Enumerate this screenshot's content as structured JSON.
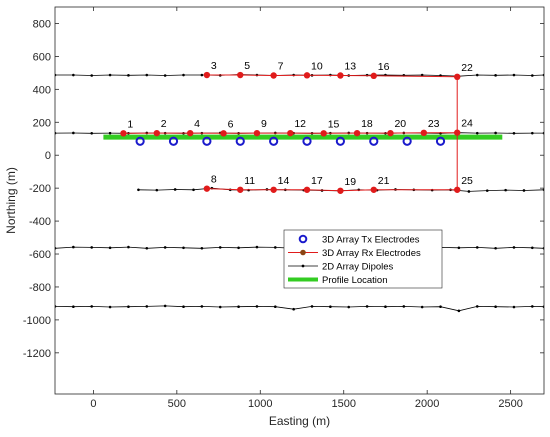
{
  "chart_data": {
    "type": "scatter",
    "xlabel": "Easting (m)",
    "ylabel": "Northing (m)",
    "xlim": [
      -230,
      2700
    ],
    "ylim": [
      -1450,
      900
    ],
    "xticks": [
      0,
      500,
      1000,
      1500,
      2000,
      2500
    ],
    "yticks": [
      -1200,
      -1000,
      -800,
      -600,
      -400,
      -200,
      0,
      200,
      400,
      600,
      800
    ],
    "grid": false,
    "legend": {
      "position": "center",
      "entries": [
        {
          "label": "3D Array Tx Electrodes",
          "series": "tx",
          "marker": "ring",
          "color": "#1a1acc"
        },
        {
          "label": "3D Array Rx Electrodes",
          "series": "rx",
          "marker": "dot-line",
          "color": "#e01b1b",
          "marker_color": "#8b4513"
        },
        {
          "label": "2D Array Dipoles",
          "series": "dipole",
          "marker": "small-dot-line",
          "color": "#000000"
        },
        {
          "label": "Profile Location",
          "series": "profile",
          "marker": "thick-line",
          "color": "#33cc22"
        }
      ]
    },
    "profile": {
      "name": "Profile Location",
      "color": "#33cc22",
      "x": [
        60,
        2450
      ],
      "y": [
        110,
        110
      ]
    },
    "tx_electrodes": {
      "name": "3D Array Tx Electrodes",
      "color": "#1a1acc",
      "x": [
        280,
        480,
        680,
        880,
        1080,
        1280,
        1480,
        1680,
        1880,
        2080
      ],
      "y": [
        85,
        85,
        85,
        85,
        85,
        85,
        85,
        85,
        85,
        85
      ]
    },
    "rx_lines": {
      "name": "3D Array Rx Electrodes",
      "color": "#e01b1b",
      "lines": [
        {
          "x": [
            680,
            880,
            1080,
            1280,
            1480,
            1680,
            2180
          ],
          "y": [
            487,
            487,
            484,
            485,
            484,
            482,
            476
          ]
        },
        {
          "x": [
            180,
            380,
            580,
            780,
            980,
            1180,
            1380,
            1580,
            1780,
            1980,
            2180
          ],
          "y": [
            133,
            134,
            134,
            133,
            134,
            134,
            133,
            134,
            134,
            136,
            137
          ]
        },
        {
          "x": [
            680,
            880,
            1080,
            1280,
            1480,
            1680,
            2180
          ],
          "y": [
            -203,
            -210,
            -210,
            -210,
            -216,
            -210,
            -210
          ]
        },
        {
          "x": [
            2180,
            2180
          ],
          "y": [
            476,
            -210
          ]
        }
      ]
    },
    "rx_labels": [
      {
        "text": "1",
        "x": 180,
        "y": 133
      },
      {
        "text": "2",
        "x": 380,
        "y": 134
      },
      {
        "text": "3",
        "x": 680,
        "y": 487
      },
      {
        "text": "4",
        "x": 580,
        "y": 134
      },
      {
        "text": "5",
        "x": 880,
        "y": 487
      },
      {
        "text": "6",
        "x": 780,
        "y": 133
      },
      {
        "text": "7",
        "x": 1080,
        "y": 484
      },
      {
        "text": "8",
        "x": 680,
        "y": -203
      },
      {
        "text": "9",
        "x": 980,
        "y": 134
      },
      {
        "text": "10",
        "x": 1280,
        "y": 485
      },
      {
        "text": "11",
        "x": 880,
        "y": -210
      },
      {
        "text": "12",
        "x": 1180,
        "y": 134
      },
      {
        "text": "13",
        "x": 1480,
        "y": 484
      },
      {
        "text": "14",
        "x": 1080,
        "y": -210
      },
      {
        "text": "15",
        "x": 1380,
        "y": 133
      },
      {
        "text": "16",
        "x": 1680,
        "y": 482
      },
      {
        "text": "17",
        "x": 1280,
        "y": -210
      },
      {
        "text": "18",
        "x": 1580,
        "y": 134
      },
      {
        "text": "19",
        "x": 1480,
        "y": -216
      },
      {
        "text": "20",
        "x": 1780,
        "y": 134
      },
      {
        "text": "21",
        "x": 1680,
        "y": -210
      },
      {
        "text": "22",
        "x": 2180,
        "y": 476
      },
      {
        "text": "23",
        "x": 1980,
        "y": 136
      },
      {
        "text": "24",
        "x": 2180,
        "y": 137
      },
      {
        "text": "25",
        "x": 2180,
        "y": -210
      }
    ],
    "dipole_lines": {
      "name": "2D Array Dipoles",
      "color": "#000000",
      "lines": [
        {
          "x": [
            -230,
            -120,
            -10,
            100,
            210,
            320,
            430,
            540,
            650,
            760,
            870,
            980,
            1090,
            1200,
            1310,
            1420,
            1530,
            1640,
            1750,
            1860,
            1970,
            2080,
            2190,
            2300,
            2410,
            2520,
            2630,
            2700
          ],
          "y": [
            487,
            487,
            484,
            487,
            485,
            487,
            484,
            487,
            487,
            485,
            490,
            487,
            484,
            487,
            485,
            487,
            484,
            486,
            487,
            485,
            487,
            484,
            480,
            487,
            485,
            487,
            484,
            487
          ]
        },
        {
          "x": [
            -230,
            -120,
            -10,
            100,
            210,
            320,
            430,
            540,
            650,
            760,
            870,
            980,
            1090,
            1200,
            1310,
            1420,
            1530,
            1640,
            1750,
            1860,
            1970,
            2080,
            2190,
            2300,
            2410,
            2520,
            2630,
            2700
          ],
          "y": [
            134,
            135,
            133,
            134,
            133,
            135,
            134,
            133,
            134,
            135,
            133,
            134,
            135,
            134,
            133,
            134,
            135,
            134,
            133,
            135,
            134,
            133,
            137,
            134,
            135,
            133,
            134,
            134
          ]
        },
        {
          "x": [
            270,
            380,
            490,
            600,
            710,
            820,
            930,
            1040,
            1150,
            1260,
            1370,
            1480,
            1590,
            1700,
            1810,
            1920,
            2030,
            2140,
            2250,
            2360,
            2470,
            2580,
            2700
          ],
          "y": [
            -210,
            -212,
            -208,
            -210,
            -200,
            -210,
            -212,
            -208,
            -210,
            -212,
            -214,
            -216,
            -210,
            -212,
            -208,
            -210,
            -212,
            -210,
            -220,
            -215,
            -212,
            -214,
            -210
          ]
        },
        {
          "x": [
            -230,
            -120,
            -10,
            100,
            210,
            320,
            430,
            540,
            650,
            760,
            870,
            980,
            1090,
            1200,
            1310,
            1420,
            1530,
            1640,
            1750,
            1860,
            1970,
            2080,
            2190,
            2300,
            2410,
            2520,
            2630,
            2700
          ],
          "y": [
            -565,
            -558,
            -560,
            -562,
            -558,
            -565,
            -560,
            -562,
            -565,
            -560,
            -562,
            -558,
            -560,
            -565,
            -562,
            -560,
            -558,
            -562,
            -565,
            -572,
            -565,
            -560,
            -562,
            -560,
            -565,
            -560,
            -562,
            -565
          ]
        },
        {
          "x": [
            -230,
            -120,
            -10,
            100,
            210,
            320,
            430,
            540,
            650,
            760,
            870,
            980,
            1090,
            1200,
            1310,
            1420,
            1530,
            1640,
            1750,
            1860,
            1970,
            2080,
            2190,
            2300,
            2410,
            2520,
            2630,
            2700
          ],
          "y": [
            -918,
            -920,
            -918,
            -922,
            -920,
            -918,
            -915,
            -920,
            -918,
            -922,
            -920,
            -918,
            -920,
            -935,
            -918,
            -920,
            -922,
            -918,
            -920,
            -918,
            -922,
            -920,
            -945,
            -918,
            -920,
            -922,
            -918,
            -920
          ]
        }
      ]
    }
  }
}
